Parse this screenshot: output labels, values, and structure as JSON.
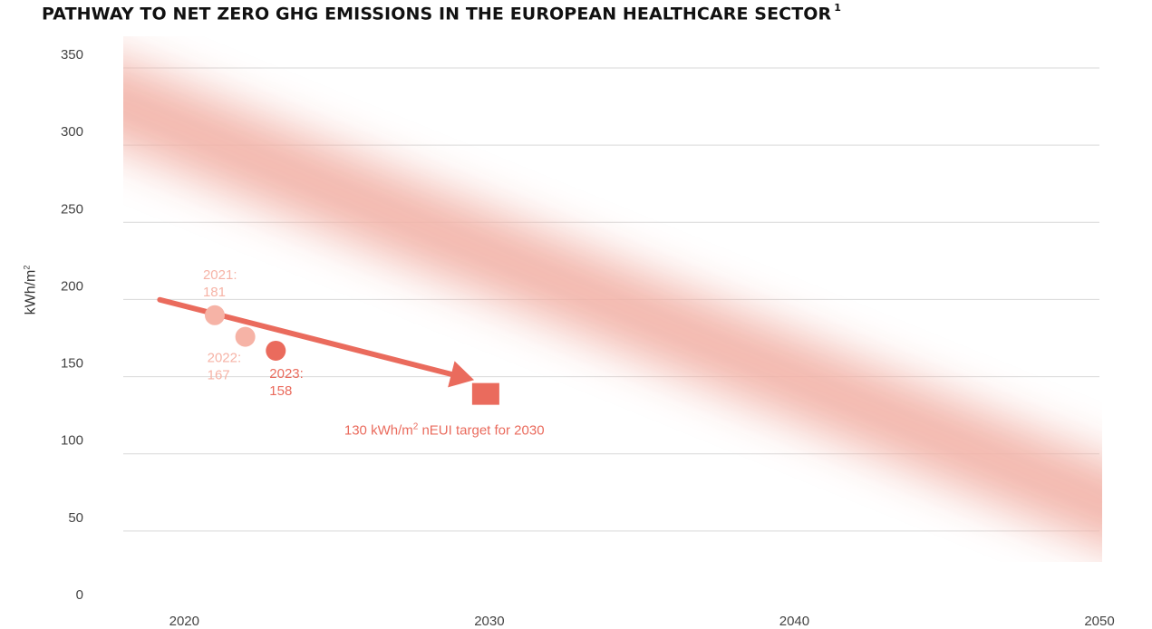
{
  "title": "PATHWAY TO NET ZERO GHG EMISSIONS IN THE EUROPEAN HEALTHCARE SECTOR",
  "title_footnote": "1",
  "chart_data": {
    "type": "line",
    "ylabel_base": "kWh/m",
    "ylabel_sup": "2",
    "xlabel": "",
    "xlim": [
      2018,
      2050
    ],
    "ylim": [
      0,
      350
    ],
    "x_ticks": [
      2020,
      2030,
      2040,
      2050
    ],
    "y_ticks": [
      0,
      50,
      100,
      150,
      200,
      250,
      300,
      350
    ],
    "grid": true,
    "pathway_band": {
      "x": [
        2018,
        2050
      ],
      "y_center": [
        322,
        58
      ],
      "color": "#f2b3a8"
    },
    "points": [
      {
        "year": 2021,
        "value": 181,
        "label_year": "2021:",
        "label_value": "181",
        "color": "#f6b3a6"
      },
      {
        "year": 2022,
        "value": 167,
        "label_year": "2022:",
        "label_value": "167",
        "color": "#f6b3a6"
      },
      {
        "year": 2023,
        "value": 158,
        "label_year": "2023:",
        "label_value": "158",
        "color": "#ea6b5d"
      }
    ],
    "trend_arrow": {
      "from": [
        2019.2,
        191
      ],
      "to": [
        2029.5,
        139
      ],
      "color": "#ea6b5d"
    },
    "target": {
      "year": 2030,
      "value": 130,
      "label_pre": "130 kWh/m",
      "label_sup": "2",
      "label_post": " nEUI target for 2030",
      "color": "#ea6b5d"
    }
  }
}
